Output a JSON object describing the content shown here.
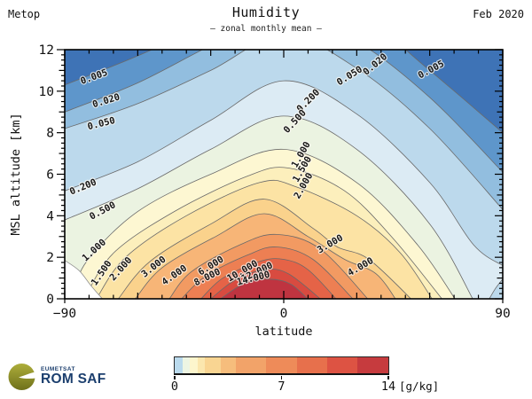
{
  "header": {
    "left": "Metop",
    "title": "Humidity",
    "subtitle": "– zonal monthly mean –",
    "right": "Feb 2020"
  },
  "chart_data": {
    "type": "contour",
    "title": "Humidity",
    "subtitle": "zonal monthly mean",
    "xlabel": "latitude",
    "ylabel": "MSL altitude [km]",
    "xlim": [
      -90,
      90
    ],
    "ylim": [
      0,
      12
    ],
    "x_ticks": {
      "major": [
        -90,
        0,
        90
      ],
      "labels": [
        "−90",
        "0",
        "90"
      ],
      "medium": [
        -60,
        -30,
        30,
        60
      ],
      "minor_step": 10
    },
    "y_ticks": {
      "major": [
        0,
        2,
        4,
        6,
        8,
        10,
        12
      ],
      "labels": [
        "0",
        "2",
        "4",
        "6",
        "8",
        "10",
        "12"
      ],
      "medium": [
        1,
        3,
        5,
        7,
        9,
        11
      ],
      "minor_step": 0.25
    },
    "units": "g/kg",
    "grid": false,
    "background_below_min": "#3e73b6",
    "line_color": "#6a6a6a",
    "levels": [
      {
        "value": 0.005,
        "fill_below": "#5e96cb",
        "points": [
          [
            -90,
            10.3
          ],
          [
            -60,
            11.7
          ],
          [
            -30,
            13.3
          ],
          [
            0,
            15.0
          ],
          [
            30,
            13.8
          ],
          [
            60,
            11.0
          ],
          [
            90,
            8.0
          ]
        ]
      },
      {
        "value": 0.02,
        "fill_below": "#92bedf",
        "points": [
          [
            -90,
            9.0
          ],
          [
            -60,
            10.4
          ],
          [
            -30,
            12.2
          ],
          [
            0,
            13.8
          ],
          [
            30,
            12.4
          ],
          [
            60,
            9.7
          ],
          [
            90,
            6.1
          ]
        ]
      },
      {
        "value": 0.05,
        "fill_below": "#bcd9ec",
        "points": [
          [
            -90,
            8.2
          ],
          [
            -60,
            9.4
          ],
          [
            -30,
            11.0
          ],
          [
            0,
            12.7
          ],
          [
            30,
            11.1
          ],
          [
            60,
            8.2
          ],
          [
            90,
            4.3
          ]
        ]
      },
      {
        "value": 0.2,
        "fill_below": "#dcebf4",
        "points": [
          [
            -90,
            5.2
          ],
          [
            -60,
            6.6
          ],
          [
            -30,
            8.6
          ],
          [
            0,
            10.5
          ],
          [
            30,
            8.9
          ],
          [
            60,
            5.6
          ],
          [
            78,
            2.6
          ],
          [
            90,
            1.6
          ]
        ]
      },
      {
        "value": 0.5,
        "fill_below": "#ebf3e1",
        "points": [
          [
            -90,
            3.8
          ],
          [
            -60,
            5.3
          ],
          [
            -30,
            7.2
          ],
          [
            0,
            8.8
          ],
          [
            30,
            7.2
          ],
          [
            60,
            3.6
          ],
          [
            79,
            -0.3
          ]
        ]
      },
      {
        "value": 1.0,
        "fill_below": "#fdf7d2",
        "points": [
          [
            -87,
            0
          ],
          [
            -81,
            1.8
          ],
          [
            -60,
            4.2
          ],
          [
            -30,
            6.0
          ],
          [
            0,
            7.2
          ],
          [
            30,
            5.6
          ],
          [
            55,
            2.6
          ],
          [
            72,
            -0.3
          ]
        ]
      },
      {
        "value": 1.5,
        "fill_below": "#fcefbc",
        "points": [
          [
            -82,
            0
          ],
          [
            -70,
            2.2
          ],
          [
            -45,
            4.2
          ],
          [
            -15,
            5.9
          ],
          [
            2,
            6.3
          ],
          [
            25,
            5.2
          ],
          [
            45,
            2.9
          ],
          [
            67,
            -0.3
          ]
        ]
      },
      {
        "value": 2.0,
        "fill_below": "#fce3a4",
        "points": [
          [
            -77,
            0
          ],
          [
            -65,
            2.0
          ],
          [
            -40,
            4.0
          ],
          [
            -10,
            5.6
          ],
          [
            5,
            5.4
          ],
          [
            30,
            4.0
          ],
          [
            48,
            2.2
          ],
          [
            62,
            -0.2
          ]
        ]
      },
      {
        "value": 3.0,
        "fill_below": "#fad28c",
        "points": [
          [
            -68,
            0
          ],
          [
            -55,
            1.8
          ],
          [
            -30,
            3.6
          ],
          [
            -8,
            4.8
          ],
          [
            12,
            3.4
          ],
          [
            22,
            2.5
          ],
          [
            35,
            1.9
          ],
          [
            54,
            -0.2
          ]
        ]
      },
      {
        "value": 4.0,
        "fill_below": "#f7b577",
        "points": [
          [
            -61,
            0
          ],
          [
            -50,
            1.5
          ],
          [
            -28,
            3.0
          ],
          [
            -8,
            4.1
          ],
          [
            10,
            3.0
          ],
          [
            25,
            1.9
          ],
          [
            38,
            1.2
          ],
          [
            47,
            -0.2
          ]
        ]
      },
      {
        "value": 6.0,
        "fill_below": "#f29a62",
        "points": [
          [
            -47,
            0
          ],
          [
            -38,
            1.3
          ],
          [
            -18,
            2.6
          ],
          [
            -3,
            3.1
          ],
          [
            15,
            2.4
          ],
          [
            36,
            -0.2
          ]
        ]
      },
      {
        "value": 8.0,
        "fill_below": "#ed7f53",
        "points": [
          [
            -42,
            0
          ],
          [
            -32,
            1.1
          ],
          [
            -15,
            2.1
          ],
          [
            -3,
            2.5
          ],
          [
            12,
            1.9
          ],
          [
            30,
            -0.2
          ]
        ]
      },
      {
        "value": 10.0,
        "fill_below": "#e56347",
        "points": [
          [
            -34,
            0
          ],
          [
            -25,
            1.0
          ],
          [
            -10,
            1.8
          ],
          [
            0,
            1.9
          ],
          [
            10,
            1.4
          ],
          [
            23,
            -0.2
          ]
        ]
      },
      {
        "value": 12.0,
        "fill_below": "#d84b40",
        "points": [
          [
            -30,
            0
          ],
          [
            -20,
            0.9
          ],
          [
            -8,
            1.4
          ],
          [
            2,
            1.2
          ],
          [
            17,
            -0.2
          ]
        ]
      },
      {
        "value": 14.0,
        "fill_below": "#bf3440",
        "points": [
          [
            -26,
            0
          ],
          [
            -16,
            0.75
          ],
          [
            -6,
            0.95
          ],
          [
            3,
            0.7
          ],
          [
            11.5,
            -0.2
          ]
        ]
      }
    ],
    "contour_labels": [
      {
        "text": "0.005",
        "lat": -78,
        "alt": 10.7,
        "rot": -20
      },
      {
        "text": "0.020",
        "lat": -73,
        "alt": 9.55,
        "rot": -17
      },
      {
        "text": "0.050",
        "lat": -75,
        "alt": 8.45,
        "rot": -14
      },
      {
        "text": "0.200",
        "lat": -82.5,
        "alt": 5.4,
        "rot": -22
      },
      {
        "text": "0.500",
        "lat": -74.5,
        "alt": 4.25,
        "rot": -28
      },
      {
        "text": "1.000",
        "lat": -78,
        "alt": 2.35,
        "rot": -42
      },
      {
        "text": "1.500",
        "lat": -75,
        "alt": 1.25,
        "rot": -55
      },
      {
        "text": "2.000",
        "lat": -67,
        "alt": 1.45,
        "rot": -48
      },
      {
        "text": "3.000",
        "lat": -53.5,
        "alt": 1.55,
        "rot": -38
      },
      {
        "text": "4.000",
        "lat": -45,
        "alt": 1.15,
        "rot": -35
      },
      {
        "text": "6.000",
        "lat": -30,
        "alt": 1.6,
        "rot": -32
      },
      {
        "text": "8.000",
        "lat": -31.5,
        "alt": 1.05,
        "rot": -26
      },
      {
        "text": "10.000",
        "lat": -17,
        "alt": 1.35,
        "rot": -30
      },
      {
        "text": "12.000",
        "lat": -11,
        "alt": 1.3,
        "rot": -26
      },
      {
        "text": "14.000",
        "lat": -12.5,
        "alt": 1.0,
        "rot": -14
      },
      {
        "text": "0.200",
        "lat": 10,
        "alt": 9.55,
        "rot": -45
      },
      {
        "text": "0.500",
        "lat": 4.5,
        "alt": 8.55,
        "rot": -47
      },
      {
        "text": "0.050",
        "lat": 27,
        "alt": 10.75,
        "rot": -32
      },
      {
        "text": "0.020",
        "lat": 37.5,
        "alt": 11.3,
        "rot": -40
      },
      {
        "text": "0.005",
        "lat": 60.5,
        "alt": 11.05,
        "rot": -28
      },
      {
        "text": "1.000",
        "lat": 7,
        "alt": 6.95,
        "rot": -60
      },
      {
        "text": "1.500",
        "lat": 7.5,
        "alt": 6.25,
        "rot": -60
      },
      {
        "text": "2.000",
        "lat": 8,
        "alt": 5.45,
        "rot": -60
      },
      {
        "text": "3.000",
        "lat": 19,
        "alt": 2.65,
        "rot": -30
      },
      {
        "text": "4.000",
        "lat": 31.5,
        "alt": 1.55,
        "rot": -30
      }
    ],
    "no_data_patch": {
      "color": "#ffffff",
      "line_color": "#909090",
      "points": [
        [
          -90,
          1.85
        ],
        [
          -84,
          1.35
        ],
        [
          -79,
          0.6
        ],
        [
          -74.5,
          0
        ]
      ],
      "close": "bl"
    },
    "corner_patch": {
      "color": "#bcd9ec",
      "line_color": "#6a6a6a",
      "points": [
        [
          84.5,
          0
        ],
        [
          87,
          0.5
        ],
        [
          90,
          0.95
        ]
      ],
      "close": "br"
    },
    "colorbar": {
      "range": [
        0,
        14
      ],
      "tick_labels": [
        {
          "value": 0,
          "label": "0"
        },
        {
          "value": 7,
          "label": "7"
        },
        {
          "value": 14,
          "label": "14"
        }
      ],
      "unit_label": "[g/kg]",
      "segments": [
        {
          "from": 0,
          "to": 0.5,
          "color": "#badaed"
        },
        {
          "from": 0.5,
          "to": 1,
          "color": "#edf5e3"
        },
        {
          "from": 1,
          "to": 1.5,
          "color": "#fdf6cd"
        },
        {
          "from": 1.5,
          "to": 2,
          "color": "#fbe7ae"
        },
        {
          "from": 2,
          "to": 3,
          "color": "#f9d592"
        },
        {
          "from": 3,
          "to": 4,
          "color": "#f6bd7c"
        },
        {
          "from": 4,
          "to": 6,
          "color": "#f2a369"
        },
        {
          "from": 6,
          "to": 8,
          "color": "#ee8b59"
        },
        {
          "from": 8,
          "to": 10,
          "color": "#e7704c"
        },
        {
          "from": 10,
          "to": 12,
          "color": "#dd5343"
        },
        {
          "from": 12,
          "to": 14,
          "color": "#c63b3e"
        }
      ]
    }
  },
  "logo": {
    "org": "EUMETSAT",
    "name": "ROM SAF"
  }
}
